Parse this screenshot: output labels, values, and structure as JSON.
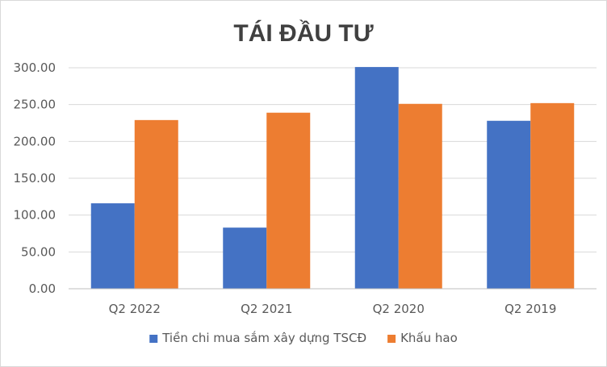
{
  "chart_data": {
    "type": "bar",
    "title": "TÁI ĐẦU TƯ",
    "xlabel": "",
    "ylabel": "",
    "categories": [
      "Q2 2022",
      "Q2 2021",
      "Q2 2020",
      "Q2 2019"
    ],
    "series": [
      {
        "name": "Tiền chi mua sắm xây dựng TSCĐ",
        "values": [
          116,
          83,
          301,
          228
        ],
        "color": "#4472c4"
      },
      {
        "name": "Khấu hao",
        "values": [
          229,
          239,
          251,
          252
        ],
        "color": "#ed7d31"
      }
    ],
    "ylim": [
      0,
      300
    ],
    "yticks": [
      0,
      50,
      100,
      150,
      200,
      250,
      300
    ],
    "ytick_labels": [
      "0.00",
      "50.00",
      "100.00",
      "150.00",
      "200.00",
      "250.00",
      "300.00"
    ],
    "grid": true,
    "legend_position": "bottom"
  }
}
